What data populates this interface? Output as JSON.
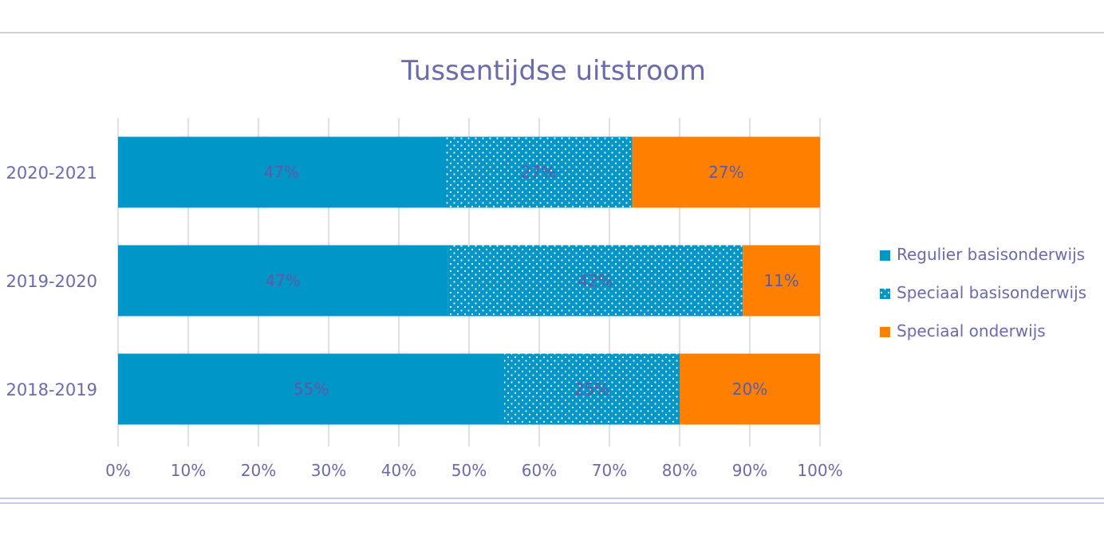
{
  "chart_data": {
    "type": "bar",
    "orientation": "horizontal",
    "stacked": true,
    "percent_stacked": true,
    "title": "Tussentijdse uitstroom",
    "categories": [
      "2020-2021",
      "2019-2020",
      "2018-2019"
    ],
    "series": [
      {
        "name": "Regulier basisonderwijs",
        "values": [
          47,
          47,
          55
        ],
        "labels": [
          "47%",
          "47%",
          "55%"
        ],
        "color": "#0096c8",
        "pattern": "solid"
      },
      {
        "name": "Speciaal basisonderwijs",
        "values": [
          27,
          42,
          25
        ],
        "labels": [
          "27%",
          "42%",
          "25%"
        ],
        "color": "#0096c8",
        "pattern": "dotted"
      },
      {
        "name": "Speciaal onderwijs",
        "values": [
          27,
          11,
          20
        ],
        "labels": [
          "27%",
          "11%",
          "20%"
        ],
        "color": "#ff8000",
        "pattern": "solid"
      }
    ],
    "xlim": [
      0,
      100
    ],
    "xticks": [
      "0%",
      "10%",
      "20%",
      "30%",
      "40%",
      "50%",
      "60%",
      "70%",
      "80%",
      "90%",
      "100%"
    ],
    "grid": "vertical",
    "legend": "right"
  }
}
